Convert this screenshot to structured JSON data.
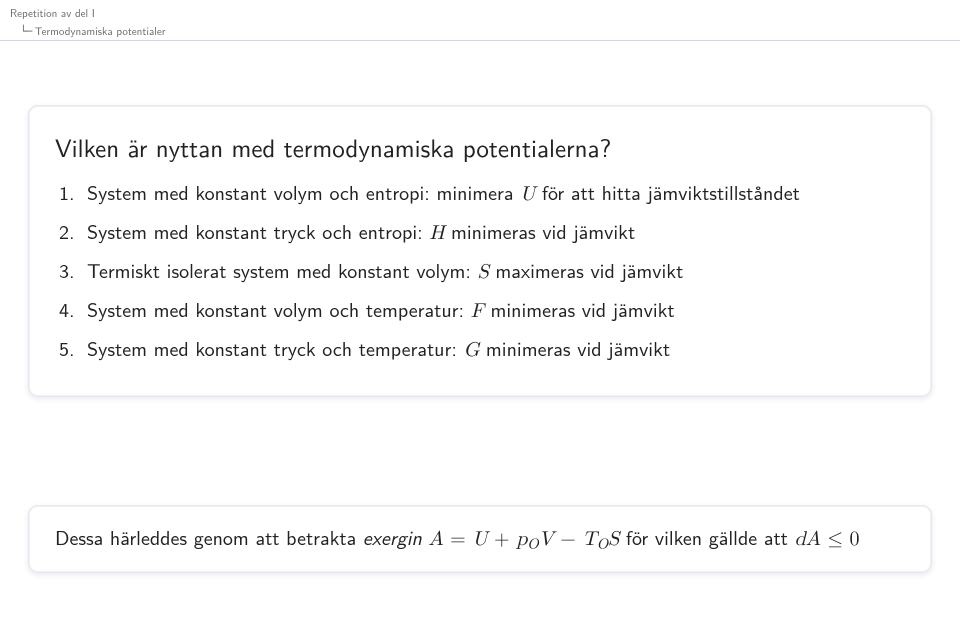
{
  "breadcrumb": {
    "line1": "Repetition av del I",
    "line2": "Termodynamiska potentialer"
  },
  "main": {
    "title": "Vilken är nyttan med termodynamiska potentialerna?",
    "items": [
      {
        "pre": "System med konstant volym och entropi: minimera ",
        "var": "U",
        "post": " för att hitta jämviktstillståndet"
      },
      {
        "pre": "System med konstant tryck och entropi: ",
        "var": "H",
        "post": " minimeras vid jämvikt"
      },
      {
        "pre": "Termiskt isolerat system med konstant volym: ",
        "var": "S",
        "post": " maximeras vid jämvikt"
      },
      {
        "pre": "System med konstant volym och temperatur: ",
        "var": "F",
        "post": " minimeras vid jämvikt"
      },
      {
        "pre": "System med konstant tryck och temperatur: ",
        "var": "G",
        "post": " minimeras vid jämvikt"
      }
    ]
  },
  "note": {
    "pre": "Dessa härleddes genom att betrakta ",
    "exergin": "exergin",
    "A": "A",
    "eq": " = ",
    "U": "U",
    "plus1": " + ",
    "p": "p",
    "O1": "O",
    "V": "V",
    "minus": " − ",
    "T": "T",
    "O2": "O",
    "S": "S",
    "post1": " för vilken gällde att ",
    "dA": "dA",
    "le": " ≤ ",
    "zero": "0"
  },
  "style": {
    "bg": "#ffffff",
    "text": "#222222",
    "breadcrumb_color": "#6a6a6a",
    "rule_color": "#d5d5e0",
    "box_border": "#e7e7ef",
    "title_fontsize": 25,
    "item_fontsize": 20,
    "breadcrumb_fontsize": 11
  }
}
